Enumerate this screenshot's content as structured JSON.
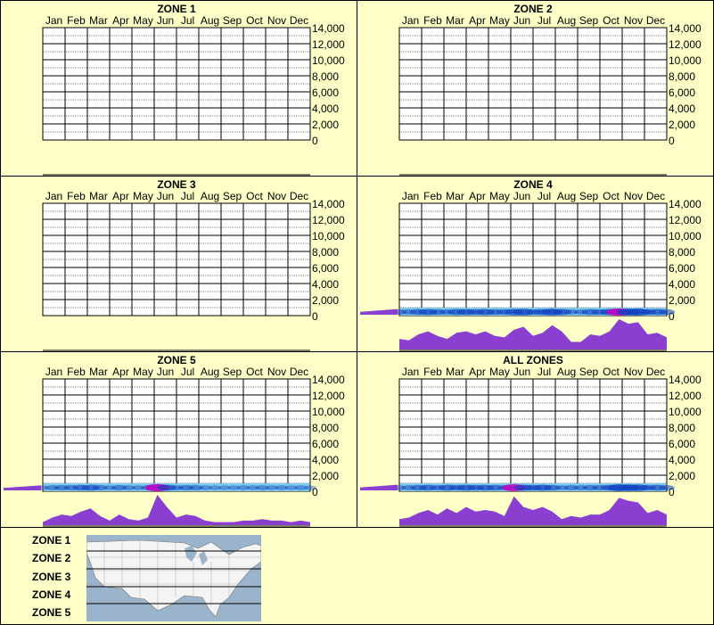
{
  "chart_data": [
    {
      "type": "heatmap",
      "title": "ZONE 1",
      "months": [
        "Jan",
        "Feb",
        "Mar",
        "Apr",
        "May",
        "Jun",
        "Jul",
        "Aug",
        "Sep",
        "Oct",
        "Nov",
        "Dec"
      ],
      "y_ticks": [
        "14,000",
        "12,000",
        "10,000",
        "8,000",
        "6,000",
        "4,000",
        "2,000",
        "0"
      ],
      "ylim": [
        0,
        14000
      ],
      "grid": true,
      "profile": [],
      "side_level": 0
    },
    {
      "type": "heatmap",
      "title": "ZONE 2",
      "months": [
        "Jan",
        "Feb",
        "Mar",
        "Apr",
        "May",
        "Jun",
        "Jul",
        "Aug",
        "Sep",
        "Oct",
        "Nov",
        "Dec"
      ],
      "y_ticks": [
        "14,000",
        "12,000",
        "10,000",
        "8,000",
        "6,000",
        "4,000",
        "2,000",
        "0"
      ],
      "ylim": [
        0,
        14000
      ],
      "grid": true,
      "profile": [],
      "side_level": 0
    },
    {
      "type": "heatmap",
      "title": "ZONE 3",
      "months": [
        "Jan",
        "Feb",
        "Mar",
        "Apr",
        "May",
        "Jun",
        "Jul",
        "Aug",
        "Sep",
        "Oct",
        "Nov",
        "Dec"
      ],
      "y_ticks": [
        "14,000",
        "12,000",
        "10,000",
        "8,000",
        "6,000",
        "4,000",
        "2,000",
        "0"
      ],
      "ylim": [
        0,
        14000
      ],
      "grid": true,
      "profile": [],
      "side_level": 0
    },
    {
      "type": "heatmap",
      "title": "ZONE 4",
      "months": [
        "Jan",
        "Feb",
        "Mar",
        "Apr",
        "May",
        "Jun",
        "Jul",
        "Aug",
        "Sep",
        "Oct",
        "Nov",
        "Dec"
      ],
      "y_ticks": [
        "14,000",
        "12,000",
        "10,000",
        "8,000",
        "6,000",
        "4,000",
        "2,000",
        "0"
      ],
      "ylim": [
        0,
        14000
      ],
      "grid": true,
      "profile": [
        0.35,
        0.3,
        0.5,
        0.6,
        0.45,
        0.35,
        0.55,
        0.6,
        0.5,
        0.6,
        0.45,
        0.4,
        0.65,
        0.75,
        0.45,
        0.55,
        0.8,
        0.6,
        0.25,
        0.25,
        0.5,
        0.45,
        0.6,
        1.0,
        0.85,
        0.9,
        0.5,
        0.55,
        0.4
      ],
      "side_level": 0.4
    },
    {
      "type": "heatmap",
      "title": "ZONE 5",
      "months": [
        "Jan",
        "Feb",
        "Mar",
        "Apr",
        "May",
        "Jun",
        "Jul",
        "Aug",
        "Sep",
        "Oct",
        "Nov",
        "Dec"
      ],
      "y_ticks": [
        "14,000",
        "12,000",
        "10,000",
        "8,000",
        "6,000",
        "4,000",
        "2,000",
        "0"
      ],
      "ylim": [
        0,
        14000
      ],
      "grid": true,
      "profile": [
        0.1,
        0.25,
        0.35,
        0.3,
        0.45,
        0.55,
        0.3,
        0.15,
        0.35,
        0.2,
        0.15,
        0.25,
        1.0,
        0.6,
        0.25,
        0.35,
        0.3,
        0.15,
        0.1,
        0.1,
        0.1,
        0.15,
        0.15,
        0.2,
        0.15,
        0.15,
        0.1,
        0.15,
        0.1
      ],
      "side_level": 0.35
    },
    {
      "type": "heatmap",
      "title": "ALL ZONES",
      "months": [
        "Jan",
        "Feb",
        "Mar",
        "Apr",
        "May",
        "Jun",
        "Jul",
        "Aug",
        "Sep",
        "Oct",
        "Nov",
        "Dec"
      ],
      "y_ticks": [
        "14,000",
        "12,000",
        "10,000",
        "8,000",
        "6,000",
        "4,000",
        "2,000",
        "0"
      ],
      "ylim": [
        0,
        14000
      ],
      "grid": true,
      "profile": [
        0.2,
        0.25,
        0.4,
        0.5,
        0.35,
        0.55,
        0.4,
        0.6,
        0.45,
        0.5,
        0.45,
        0.3,
        0.95,
        0.6,
        0.5,
        0.6,
        0.45,
        0.2,
        0.3,
        0.25,
        0.35,
        0.35,
        0.5,
        0.9,
        0.8,
        0.75,
        0.4,
        0.5,
        0.35
      ],
      "side_level": 0.4
    }
  ],
  "legend": {
    "zones": [
      "ZONE 1",
      "ZONE 2",
      "ZONE 3",
      "ZONE 4",
      "ZONE 5"
    ],
    "map_icon": "us-map-icon",
    "colors": {
      "map_water": "#9ab4cc",
      "map_land": "#f4f4f4",
      "profile": "#8a3fd0",
      "heat_base": "#7ec8e8",
      "heat_mid": "#1040c0",
      "heat_high": "#c000c0"
    }
  }
}
